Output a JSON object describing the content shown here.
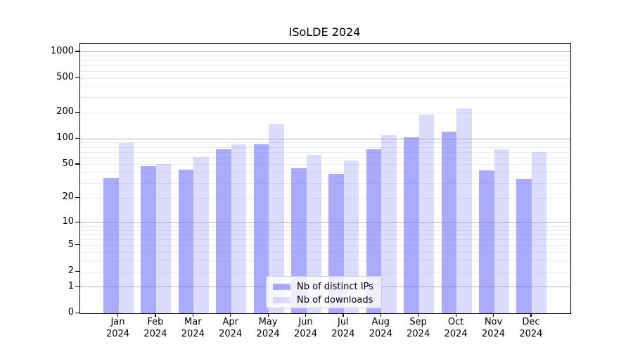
{
  "title": "ISoLDE 2024",
  "chart_data": {
    "type": "bar",
    "title": "ISoLDE 2024",
    "xlabel": "",
    "ylabel": "",
    "scale": "log10(1+y)",
    "year": "2024",
    "months": [
      "Jan",
      "Feb",
      "Mar",
      "Apr",
      "May",
      "Jun",
      "Jul",
      "Aug",
      "Sep",
      "Oct",
      "Nov",
      "Dec"
    ],
    "categories": [
      "Jan 2024",
      "Feb 2024",
      "Mar 2024",
      "Apr 2024",
      "May 2024",
      "Jun 2024",
      "Jul 2024",
      "Aug 2024",
      "Sep 2024",
      "Oct 2024",
      "Nov 2024",
      "Dec 2024"
    ],
    "series": [
      {
        "name": "Nb of distinct IPs",
        "color": "#7878f8",
        "alpha": 0.62,
        "rendered_hex": "#aaaafa",
        "values": [
          35,
          48,
          44,
          75,
          87,
          45,
          39,
          75,
          105,
          120,
          43,
          34
        ]
      },
      {
        "name": "Nb of downloads",
        "color": "#7878f8",
        "alpha": 0.26,
        "rendered_hex": "#dbdbf9",
        "values": [
          90,
          51,
          62,
          87,
          150,
          65,
          56,
          110,
          190,
          225,
          75,
          70
        ]
      }
    ],
    "yticks": [
      0,
      1,
      2,
      5,
      10,
      20,
      50,
      100,
      200,
      500,
      1000
    ],
    "ylim": [
      0,
      1250
    ],
    "grid": "both",
    "gridlines": {
      "major_values": [
        1,
        10,
        100,
        1000
      ],
      "minor_values": [
        2,
        3,
        4,
        5,
        6,
        7,
        8,
        9,
        20,
        30,
        40,
        50,
        60,
        70,
        80,
        90,
        200,
        300,
        400,
        500,
        600,
        700,
        800,
        900
      ],
      "major_color": "#b3b3b3",
      "minor_color": "#eaeaea"
    },
    "legend_position": "lower-center"
  },
  "legend": {
    "items": [
      {
        "label": "Nb of distinct IPs"
      },
      {
        "label": "Nb of downloads"
      }
    ]
  }
}
